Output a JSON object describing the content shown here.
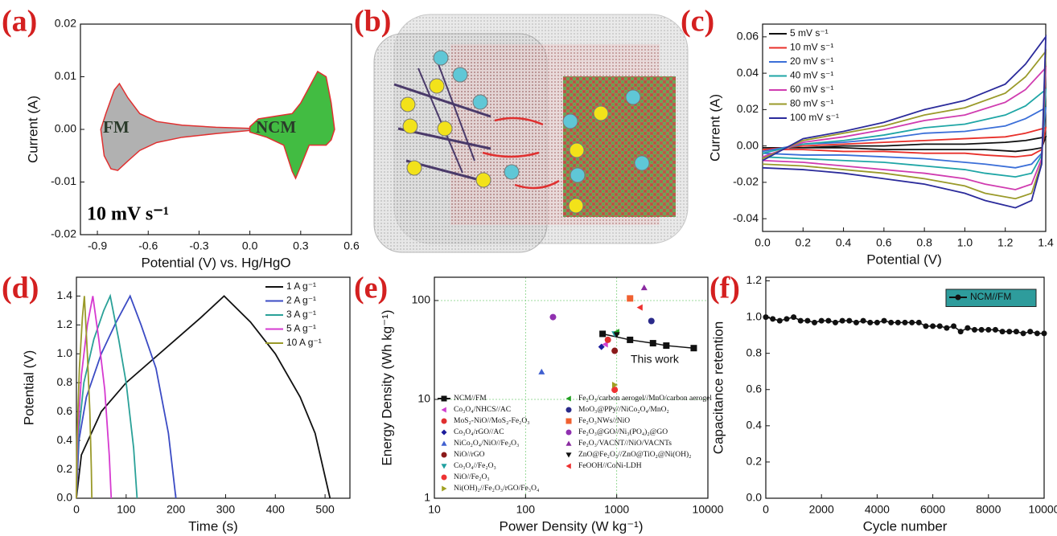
{
  "chart_data": [
    {
      "type": "area",
      "label": "(a)",
      "xlabel": "Potential (V) vs. Hg/HgO",
      "ylabel": "Current (A)",
      "xlim": [
        -1.0,
        0.6
      ],
      "ylim": [
        -0.02,
        0.02
      ],
      "xticks": [
        -0.9,
        -0.6,
        -0.3,
        {
          "value": 0,
          "label": "0.0"
        },
        0.3,
        0.6
      ],
      "yticks": [
        -0.02,
        -0.01,
        {
          "value": 0,
          "label": "0.00"
        },
        0.01,
        0.02
      ],
      "edge_color": "#e03030",
      "annotations": [
        "FM",
        "NCM",
        "10 mV s⁻¹"
      ],
      "series": [
        {
          "name": "FM",
          "color": "#a8a8a8",
          "x": [
            -0.88,
            -0.85,
            -0.8,
            -0.77,
            -0.72,
            -0.65,
            -0.55,
            -0.4,
            -0.2,
            0.0,
            0.0,
            -0.2,
            -0.4,
            -0.55,
            -0.65,
            -0.72,
            -0.78,
            -0.82,
            -0.86,
            -0.88
          ],
          "values": [
            0.0,
            0.003,
            0.0075,
            0.0087,
            0.006,
            0.003,
            0.0015,
            0.0008,
            0.0004,
            0.0002,
            -0.0002,
            -0.0008,
            -0.0015,
            -0.0025,
            -0.004,
            -0.006,
            -0.0078,
            -0.0075,
            -0.005,
            0.0
          ]
        },
        {
          "name": "NCM",
          "color": "#2db52d",
          "x": [
            0.0,
            0.05,
            0.15,
            0.25,
            0.3,
            0.35,
            0.4,
            0.45,
            0.48,
            0.5,
            0.48,
            0.45,
            0.4,
            0.35,
            0.3,
            0.27,
            0.25,
            0.2,
            0.1,
            0.0
          ],
          "values": [
            0.0005,
            0.002,
            0.0025,
            0.003,
            0.005,
            0.008,
            0.011,
            0.01,
            0.005,
            0.0,
            -0.002,
            -0.003,
            -0.003,
            -0.003,
            -0.007,
            -0.0093,
            -0.008,
            -0.003,
            -0.0015,
            -0.0005
          ]
        }
      ]
    },
    {
      "type": "diagram",
      "label": "(b)"
    },
    {
      "type": "line",
      "label": "(c)",
      "xlabel": "Potential (V)",
      "ylabel": "Current (A)",
      "xlim": [
        0,
        1.4
      ],
      "ylim": [
        -0.047,
        0.067
      ],
      "xticks": [
        {
          "value": 0,
          "label": "0.0"
        },
        0.2,
        0.4,
        0.6,
        0.8,
        {
          "value": 1,
          "label": "1.0"
        },
        1.2,
        1.4
      ],
      "yticks": [
        -0.04,
        -0.02,
        {
          "value": 0,
          "label": "0.00"
        },
        0.02,
        0.04,
        0.06
      ],
      "legend": "upper left",
      "x": [
        0,
        0.2,
        0.4,
        0.6,
        0.8,
        1.0,
        1.2,
        1.3,
        1.4,
        1.38,
        1.33,
        1.25,
        1.1,
        1.0,
        0.8,
        0.6,
        0.4,
        0.2,
        0
      ],
      "series": [
        {
          "name": "5 mV s⁻¹",
          "color": "#111111",
          "values": [
            -0.001,
            -0.001,
            0,
            0,
            0.001,
            0.001,
            0.002,
            0.003,
            0.005,
            -0.001,
            -0.002,
            -0.003,
            -0.002,
            -0.002,
            -0.002,
            -0.002,
            -0.001,
            -0.001,
            -0.001
          ]
        },
        {
          "name": "10 mV s⁻¹",
          "color": "#e8302a",
          "values": [
            -0.002,
            0,
            0.001,
            0.002,
            0.003,
            0.004,
            0.005,
            0.007,
            0.01,
            -0.002,
            -0.005,
            -0.006,
            -0.005,
            -0.004,
            -0.004,
            -0.003,
            -0.003,
            -0.002,
            -0.002
          ]
        },
        {
          "name": "20 mV s⁻¹",
          "color": "#3b6fd8",
          "values": [
            -0.003,
            0.001,
            0.002,
            0.004,
            0.007,
            0.008,
            0.011,
            0.015,
            0.021,
            -0.004,
            -0.01,
            -0.012,
            -0.01,
            -0.009,
            -0.007,
            -0.006,
            -0.005,
            -0.005,
            -0.004
          ]
        },
        {
          "name": "40 mV s⁻¹",
          "color": "#1fa6a6",
          "values": [
            -0.004,
            0.001,
            0.003,
            0.006,
            0.01,
            0.012,
            0.017,
            0.022,
            0.031,
            -0.005,
            -0.015,
            -0.017,
            -0.015,
            -0.013,
            -0.011,
            -0.009,
            -0.008,
            -0.007,
            -0.006
          ]
        },
        {
          "name": "60 mV s⁻¹",
          "color": "#d03cb0",
          "values": [
            -0.006,
            0.002,
            0.005,
            0.009,
            0.014,
            0.017,
            0.024,
            0.031,
            0.043,
            -0.007,
            -0.021,
            -0.024,
            -0.021,
            -0.018,
            -0.015,
            -0.013,
            -0.011,
            -0.009,
            -0.008
          ]
        },
        {
          "name": "80 mV s⁻¹",
          "color": "#9a9a2a",
          "values": [
            -0.007,
            0.003,
            0.007,
            0.011,
            0.017,
            0.021,
            0.029,
            0.038,
            0.052,
            -0.009,
            -0.026,
            -0.029,
            -0.026,
            -0.022,
            -0.018,
            -0.015,
            -0.013,
            -0.011,
            -0.01
          ]
        },
        {
          "name": "100 mV s⁻¹",
          "color": "#2b2b9b",
          "values": [
            -0.008,
            0.004,
            0.008,
            0.013,
            0.02,
            0.025,
            0.034,
            0.045,
            0.06,
            -0.01,
            -0.03,
            -0.034,
            -0.03,
            -0.026,
            -0.021,
            -0.018,
            -0.015,
            -0.013,
            -0.012
          ]
        }
      ]
    },
    {
      "type": "line",
      "label": "(d)",
      "xlabel": "Time (s)",
      "ylabel": "Potential (V)",
      "xlim": [
        0,
        550
      ],
      "ylim": [
        0,
        1.53
      ],
      "xticks": [
        0,
        100,
        200,
        300,
        400,
        500
      ],
      "yticks": [
        {
          "value": 0,
          "label": "0.0"
        },
        0.2,
        0.4,
        0.6,
        0.8,
        {
          "value": 1,
          "label": "1.0"
        },
        1.2,
        1.4
      ],
      "legend": "upper right",
      "series": [
        {
          "name": "1 A g⁻¹",
          "color": "#111111",
          "x": [
            0,
            10,
            50,
            100,
            150,
            200,
            250,
            297,
            350,
            400,
            450,
            480,
            510
          ],
          "values": [
            0,
            0.3,
            0.6,
            0.8,
            0.95,
            1.1,
            1.25,
            1.4,
            1.22,
            1.0,
            0.7,
            0.45,
            0
          ]
        },
        {
          "name": "2 A g⁻¹",
          "color": "#3b4bc4",
          "x": [
            0,
            5,
            20,
            50,
            80,
            108,
            130,
            160,
            185,
            200
          ],
          "values": [
            0,
            0.4,
            0.7,
            1.0,
            1.22,
            1.4,
            1.2,
            0.9,
            0.45,
            0
          ]
        },
        {
          "name": "3 A g⁻¹",
          "color": "#2aa198",
          "x": [
            0,
            3,
            15,
            35,
            55,
            68,
            85,
            100,
            115,
            122
          ],
          "values": [
            0,
            0.4,
            0.8,
            1.1,
            1.3,
            1.4,
            1.1,
            0.8,
            0.35,
            0
          ]
        },
        {
          "name": "5 A g⁻¹",
          "color": "#d63ad0",
          "x": [
            0,
            2,
            10,
            22,
            33,
            45,
            57,
            66,
            70
          ],
          "values": [
            0,
            0.4,
            0.85,
            1.2,
            1.4,
            1.1,
            0.75,
            0.3,
            0
          ]
        },
        {
          "name": "10 A g⁻¹",
          "color": "#9a9a2a",
          "x": [
            0,
            1,
            6,
            12,
            16,
            22,
            27,
            30,
            31
          ],
          "values": [
            0,
            0.4,
            0.9,
            1.25,
            1.4,
            1.0,
            0.6,
            0.2,
            0
          ]
        }
      ]
    },
    {
      "type": "scatter",
      "label": "(e)",
      "xlabel": "Power Density (W kg⁻¹)",
      "ylabel": "Energy Density (Wh kg⁻¹)",
      "xscale": "log",
      "yscale": "log",
      "xlim": [
        10,
        10000
      ],
      "ylim": [
        1,
        172
      ],
      "xticks": [
        10,
        100,
        1000,
        10000
      ],
      "yticks": [
        1,
        10,
        100
      ],
      "grid": true,
      "legend": "lower left",
      "legend_columns": 2,
      "annotations": [
        "This work"
      ],
      "series": [
        {
          "name": "NCM//FM",
          "color": "#111111",
          "marker": "square",
          "connected": true,
          "x": [
            700,
            1400,
            2500,
            3500,
            7000
          ],
          "values": [
            46,
            40,
            37,
            35,
            33
          ]
        },
        {
          "name": "Co₃O₄/NHCS//AC",
          "color": "#d040d0",
          "marker": "triangle-left",
          "x": [
            750
          ],
          "values": [
            36
          ]
        },
        {
          "name": "MoS₂-NiO//MoS₂-Fe₂O₃",
          "color": "#e03030",
          "marker": "circle",
          "x": [
            800
          ],
          "values": [
            40
          ]
        },
        {
          "name": "Co₃O₄/rGO//AC",
          "color": "#1c1c9c",
          "marker": "diamond",
          "x": [
            680
          ],
          "values": [
            34
          ]
        },
        {
          "name": "NiCo₂O₄/NiO//Fe₂O₃",
          "color": "#4060d0",
          "marker": "triangle-up",
          "x": [
            150
          ],
          "values": [
            19
          ]
        },
        {
          "name": "NiO//rGO",
          "color": "#8b1a1a",
          "marker": "circle",
          "x": [
            950
          ],
          "values": [
            31
          ]
        },
        {
          "name": "Co₃O₄//Fe₂O₃",
          "color": "#20a0a0",
          "marker": "triangle-down",
          "x": [
            950
          ],
          "values": [
            46
          ]
        },
        {
          "name": "NiO//Fe₂O₃",
          "color": "#ee3333",
          "marker": "circle",
          "x": [
            950
          ],
          "values": [
            12.5
          ]
        },
        {
          "name": "Ni(OH)₂//Fe₂O₃/rGO/Fe₃O₄",
          "color": "#a0a020",
          "marker": "triangle-right",
          "x": [
            950
          ],
          "values": [
            14
          ]
        },
        {
          "name": "Fe₂O₃/carbon aerogel//MnO/carbon aerogel",
          "color": "#20a020",
          "marker": "triangle-left",
          "x": [
            1000
          ],
          "values": [
            48
          ]
        },
        {
          "name": "MoO₃@PPy//NiCo₂O₄/MnO₂",
          "color": "#2a2a8a",
          "marker": "circle",
          "x": [
            2400
          ],
          "values": [
            62
          ]
        },
        {
          "name": "Fe₂O₃NWs//NiO",
          "color": "#f06030",
          "marker": "square",
          "x": [
            1400
          ],
          "values": [
            105
          ]
        },
        {
          "name": "Fe₂O₃@GO//Ni₃(PO₄)₂@GO",
          "color": "#9030b0",
          "marker": "circle",
          "x": [
            200
          ],
          "values": [
            68
          ]
        },
        {
          "name": "Fe₂O₃/VACNT//NiO/VACNTs",
          "color": "#8a2aa0",
          "marker": "triangle-up",
          "x": [
            2000
          ],
          "values": [
            135
          ]
        },
        {
          "name": "ZnO@Fe₂O₃//ZnO@TiO₂@Ni(OH)₂",
          "color": "#111111",
          "marker": "triangle-down",
          "x": [
            1000
          ],
          "values": [
            45
          ]
        },
        {
          "name": "FeOOH//CoNi-LDH",
          "color": "#ee3030",
          "marker": "triangle-left",
          "x": [
            1800
          ],
          "values": [
            85
          ]
        }
      ]
    },
    {
      "type": "line",
      "label": "(f)",
      "xlabel": "Cycle number",
      "ylabel": "Capacitance retention",
      "xlim": [
        0,
        10000
      ],
      "ylim": [
        0,
        1.22
      ],
      "xticks": [
        0,
        2000,
        4000,
        6000,
        8000,
        10000
      ],
      "yticks": [
        {
          "value": 0,
          "label": "0.0"
        },
        0.2,
        0.4,
        0.6,
        0.8,
        {
          "value": 1,
          "label": "1.0"
        },
        1.2
      ],
      "legend": "upper right",
      "legend_facecolor": "#2e9c9c",
      "x": [
        0,
        250,
        500,
        750,
        1000,
        1250,
        1500,
        1750,
        2000,
        2250,
        2500,
        2750,
        3000,
        3250,
        3500,
        3750,
        4000,
        4250,
        4500,
        4750,
        5000,
        5250,
        5500,
        5750,
        6000,
        6250,
        6500,
        6750,
        7000,
        7250,
        7500,
        7750,
        8000,
        8250,
        8500,
        8750,
        9000,
        9250,
        9500,
        9750,
        10000
      ],
      "series": [
        {
          "name": "NCM//FM",
          "color": "#111111",
          "marker": "circle",
          "values": [
            1.0,
            0.99,
            0.98,
            0.99,
            1.0,
            0.98,
            0.98,
            0.97,
            0.98,
            0.98,
            0.97,
            0.98,
            0.98,
            0.97,
            0.98,
            0.97,
            0.97,
            0.98,
            0.97,
            0.97,
            0.97,
            0.97,
            0.97,
            0.95,
            0.95,
            0.95,
            0.94,
            0.95,
            0.92,
            0.94,
            0.93,
            0.93,
            0.93,
            0.93,
            0.92,
            0.92,
            0.92,
            0.91,
            0.92,
            0.91,
            0.91
          ]
        }
      ]
    }
  ]
}
